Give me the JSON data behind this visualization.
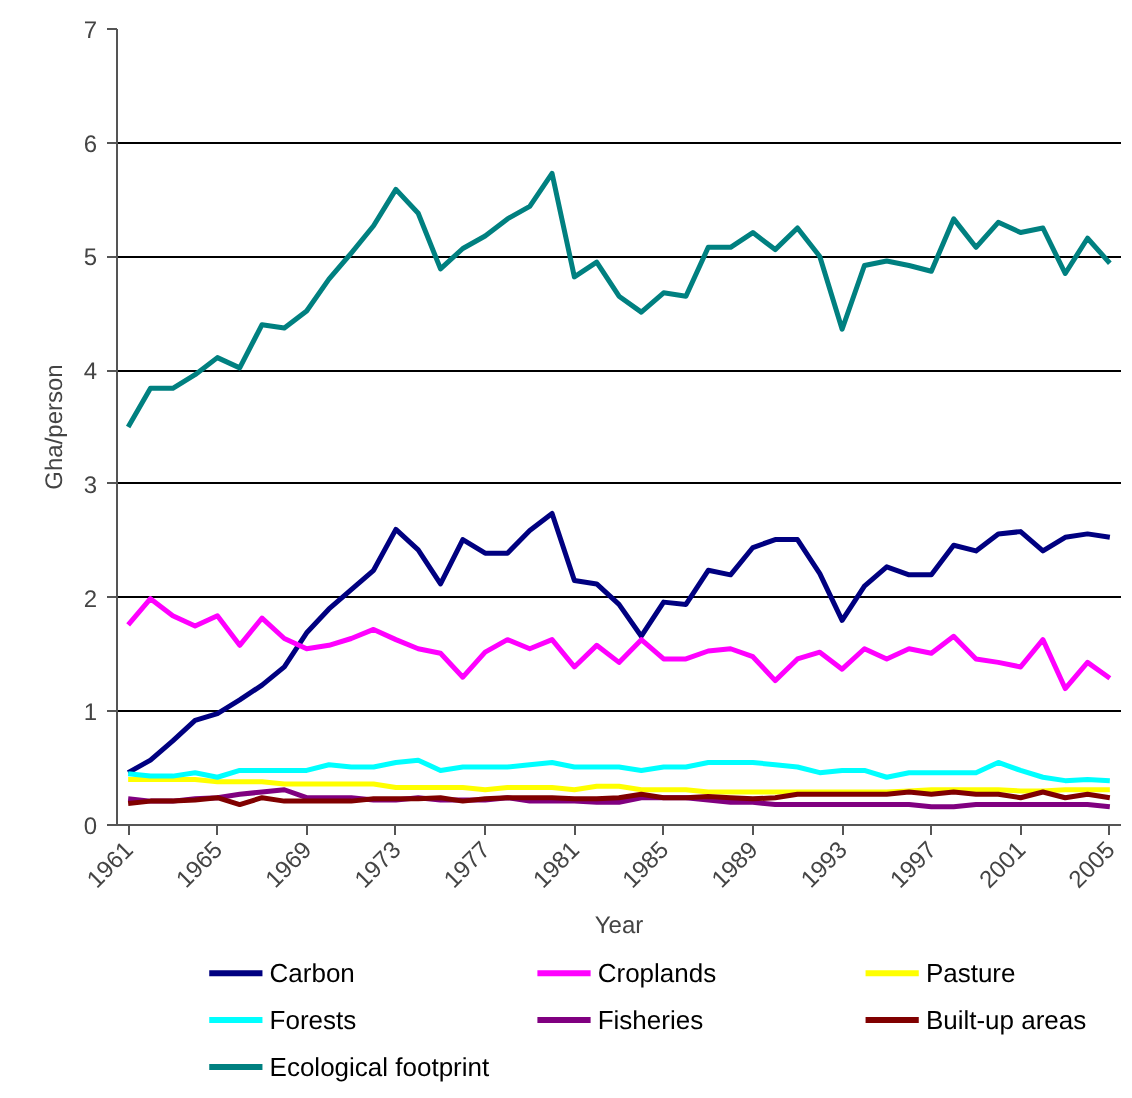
{
  "chart_data": {
    "type": "line",
    "xlabel": "Year",
    "ylabel": "Gha/person",
    "x": [
      1961,
      1962,
      1963,
      1964,
      1965,
      1966,
      1967,
      1968,
      1969,
      1970,
      1971,
      1972,
      1973,
      1974,
      1975,
      1976,
      1977,
      1978,
      1979,
      1980,
      1981,
      1982,
      1983,
      1984,
      1985,
      1986,
      1987,
      1988,
      1989,
      1990,
      1991,
      1992,
      1993,
      1994,
      1995,
      1996,
      1997,
      1998,
      1999,
      2000,
      2001,
      2002,
      2003,
      2004,
      2005
    ],
    "xlim": [
      1960.5,
      2005.5
    ],
    "xticks": [
      1961,
      1965,
      1969,
      1973,
      1977,
      1981,
      1985,
      1989,
      1993,
      1997,
      2001,
      2005
    ],
    "ylim": [
      0,
      7
    ],
    "yticks": [
      0,
      1,
      2,
      3,
      4,
      5,
      6,
      7
    ],
    "grid": "y",
    "legend": "bottom",
    "line_style": "solid",
    "marker": "none",
    "series": [
      {
        "name": "Carbon",
        "color": "#000080",
        "values": [
          0.46,
          0.57,
          0.74,
          0.92,
          0.98,
          1.1,
          1.23,
          1.39,
          1.69,
          1.9,
          2.07,
          2.24,
          2.6,
          2.42,
          2.12,
          2.51,
          2.39,
          2.39,
          2.59,
          2.74,
          2.15,
          2.12,
          1.94,
          1.66,
          1.96,
          1.94,
          2.24,
          2.2,
          2.44,
          2.51,
          2.51,
          2.21,
          1.8,
          2.1,
          2.27,
          2.2,
          2.2,
          2.46,
          2.41,
          2.56,
          2.58,
          2.41,
          2.53,
          2.56,
          2.53
        ]
      },
      {
        "name": "Croplands",
        "color": "#ff00ff",
        "values": [
          1.76,
          1.99,
          1.84,
          1.75,
          1.84,
          1.58,
          1.82,
          1.64,
          1.55,
          1.58,
          1.64,
          1.72,
          1.63,
          1.55,
          1.51,
          1.3,
          1.52,
          1.63,
          1.55,
          1.63,
          1.39,
          1.58,
          1.43,
          1.63,
          1.46,
          1.46,
          1.53,
          1.55,
          1.48,
          1.27,
          1.46,
          1.52,
          1.37,
          1.55,
          1.46,
          1.55,
          1.51,
          1.66,
          1.46,
          1.43,
          1.39,
          1.63,
          1.2,
          1.43,
          1.29
        ]
      },
      {
        "name": "Pasture",
        "color": "#ffff00",
        "values": [
          0.4,
          0.4,
          0.4,
          0.4,
          0.38,
          0.38,
          0.38,
          0.36,
          0.36,
          0.36,
          0.36,
          0.36,
          0.33,
          0.33,
          0.33,
          0.33,
          0.31,
          0.33,
          0.33,
          0.33,
          0.31,
          0.34,
          0.34,
          0.31,
          0.31,
          0.31,
          0.29,
          0.29,
          0.29,
          0.29,
          0.29,
          0.29,
          0.29,
          0.29,
          0.29,
          0.3,
          0.31,
          0.31,
          0.31,
          0.31,
          0.3,
          0.3,
          0.31,
          0.31,
          0.31
        ]
      },
      {
        "name": "Forests",
        "color": "#00ffff",
        "values": [
          0.45,
          0.43,
          0.43,
          0.46,
          0.42,
          0.48,
          0.48,
          0.48,
          0.48,
          0.53,
          0.51,
          0.51,
          0.55,
          0.57,
          0.48,
          0.51,
          0.51,
          0.51,
          0.53,
          0.55,
          0.51,
          0.51,
          0.51,
          0.48,
          0.51,
          0.51,
          0.55,
          0.55,
          0.55,
          0.53,
          0.51,
          0.46,
          0.48,
          0.48,
          0.42,
          0.46,
          0.46,
          0.46,
          0.46,
          0.55,
          0.48,
          0.42,
          0.39,
          0.4,
          0.39
        ]
      },
      {
        "name": "Fisheries",
        "color": "#800080",
        "values": [
          0.23,
          0.21,
          0.21,
          0.23,
          0.24,
          0.27,
          0.29,
          0.31,
          0.24,
          0.24,
          0.24,
          0.22,
          0.22,
          0.24,
          0.22,
          0.22,
          0.22,
          0.24,
          0.21,
          0.21,
          0.21,
          0.2,
          0.2,
          0.24,
          0.24,
          0.24,
          0.22,
          0.2,
          0.2,
          0.18,
          0.18,
          0.18,
          0.18,
          0.18,
          0.18,
          0.18,
          0.16,
          0.16,
          0.18,
          0.18,
          0.18,
          0.18,
          0.18,
          0.18,
          0.16
        ]
      },
      {
        "name": "Built-up areas",
        "color": "#800000",
        "values": [
          0.19,
          0.21,
          0.21,
          0.22,
          0.24,
          0.18,
          0.24,
          0.21,
          0.21,
          0.21,
          0.21,
          0.23,
          0.23,
          0.23,
          0.24,
          0.21,
          0.23,
          0.24,
          0.24,
          0.24,
          0.23,
          0.23,
          0.24,
          0.27,
          0.24,
          0.24,
          0.25,
          0.24,
          0.23,
          0.24,
          0.27,
          0.27,
          0.27,
          0.27,
          0.27,
          0.29,
          0.27,
          0.29,
          0.27,
          0.27,
          0.24,
          0.29,
          0.24,
          0.27,
          0.24
        ]
      },
      {
        "name": "Ecological footprint",
        "color": "#008080",
        "values": [
          3.5,
          3.84,
          3.84,
          3.96,
          4.11,
          4.02,
          4.4,
          4.37,
          4.52,
          4.8,
          5.03,
          5.27,
          5.59,
          5.38,
          4.89,
          5.07,
          5.18,
          5.33,
          5.44,
          5.73,
          4.82,
          4.95,
          4.65,
          4.51,
          4.68,
          4.65,
          5.08,
          5.08,
          5.21,
          5.06,
          5.25,
          5.0,
          4.36,
          4.92,
          4.96,
          4.92,
          4.87,
          5.33,
          5.08,
          5.3,
          5.21,
          5.25,
          4.85,
          5.16,
          4.94
        ]
      }
    ]
  }
}
